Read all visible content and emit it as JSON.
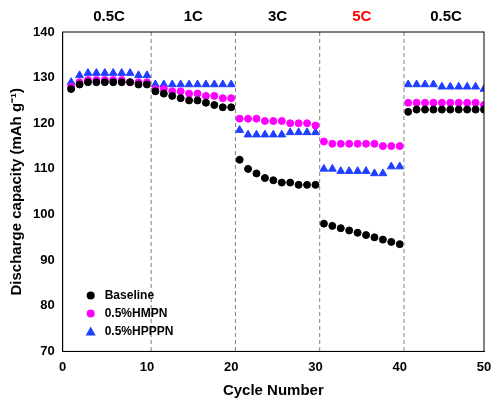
{
  "chart_data": {
    "type": "scatter",
    "x_label": "Cycle Number",
    "y_label": "Discharge capacity (mAh g⁻¹)",
    "x": [
      1,
      2,
      3,
      4,
      5,
      6,
      7,
      8,
      9,
      10,
      11,
      12,
      13,
      14,
      15,
      16,
      17,
      18,
      19,
      20,
      21,
      22,
      23,
      24,
      25,
      26,
      27,
      28,
      29,
      30,
      31,
      32,
      33,
      34,
      35,
      36,
      37,
      38,
      39,
      40,
      41,
      42,
      43,
      44,
      45,
      46,
      47,
      48,
      49,
      50
    ],
    "series": [
      {
        "name": "Baseline",
        "color": "#000000",
        "marker": "circle",
        "values": [
          127.5,
          128.5,
          129,
          129,
          129,
          129,
          129,
          129,
          128.5,
          128.5,
          127,
          126.5,
          126,
          125.5,
          125,
          125,
          124.5,
          124,
          123.5,
          123.5,
          112,
          110,
          109,
          108,
          107.5,
          107,
          107,
          106.5,
          106.5,
          106.5,
          98,
          97.5,
          97,
          96.5,
          96,
          95.5,
          95,
          94.5,
          94,
          93.5,
          122.5,
          123,
          123,
          123,
          123,
          123,
          123,
          123,
          123,
          123
        ]
      },
      {
        "name": "0.5%HMPN",
        "color": "#ff00ff",
        "marker": "circle",
        "values": [
          128,
          129,
          129.5,
          129.5,
          129.5,
          129.5,
          129.5,
          129,
          129,
          129,
          127.5,
          127.5,
          127,
          127,
          126.5,
          126.5,
          126,
          126,
          125.5,
          125.5,
          121,
          121,
          121,
          120.5,
          120.5,
          120.5,
          120,
          120,
          120,
          119.5,
          116,
          115.5,
          115.5,
          115.5,
          115.5,
          115.5,
          115.5,
          115,
          115,
          115,
          124.5,
          124.5,
          124.5,
          124.5,
          124.5,
          124.5,
          124.5,
          124.5,
          124.5,
          124
        ]
      },
      {
        "name": "0.5%HPPPN",
        "color": "#1f3fff",
        "marker": "triangle",
        "values": [
          129,
          130.5,
          131,
          131,
          131,
          131,
          131,
          131,
          130.5,
          130.5,
          128.5,
          128.5,
          128.5,
          128.5,
          128.5,
          128.5,
          128.5,
          128.5,
          128.5,
          128.5,
          118.5,
          117.5,
          117.5,
          117.5,
          117.5,
          117.5,
          118,
          118,
          118,
          118,
          110,
          110,
          109.5,
          109.5,
          109.5,
          109.5,
          109,
          109,
          110.5,
          110.5,
          128.5,
          128.5,
          128.5,
          128.5,
          128,
          128,
          128,
          128,
          128,
          127.5
        ]
      }
    ],
    "xlim": [
      0,
      50
    ],
    "xticks": [
      0,
      10,
      20,
      30,
      40,
      50
    ],
    "ylim": [
      70,
      140
    ],
    "yticks": [
      70,
      80,
      90,
      100,
      110,
      120,
      130,
      140
    ],
    "grid": false,
    "legend": "lower left",
    "dividers": [
      10.5,
      20.5,
      30.5,
      40.5
    ],
    "annotations": [
      {
        "text": "0.5C",
        "x": 5.5,
        "color": "#000000"
      },
      {
        "text": "1C",
        "x": 15.5,
        "color": "#000000"
      },
      {
        "text": "3C",
        "x": 25.5,
        "color": "#000000"
      },
      {
        "text": "5C",
        "x": 35.5,
        "color": "#ff0000"
      },
      {
        "text": "0.5C",
        "x": 45.5,
        "color": "#000000"
      }
    ]
  }
}
